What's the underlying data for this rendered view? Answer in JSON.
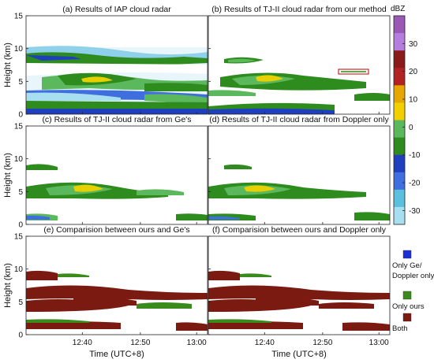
{
  "figure": {
    "xlabel": "Time (UTC+8)",
    "ylabel": "Height (km)",
    "x_tick_labels": [
      "12:40",
      "12:50",
      "13:00"
    ],
    "y_tick_labels": [
      "0",
      "5",
      "10",
      "15"
    ],
    "panels": [
      {
        "id": "a",
        "title": "(a) Results of IAP cloud radar"
      },
      {
        "id": "b",
        "title": "(b) Results of TJ-II cloud radar from our method"
      },
      {
        "id": "c",
        "title": "(c) Results of TJ-II cloud radar from Ge's"
      },
      {
        "id": "d",
        "title": "(d) Results of TJ-II cloud radar from Doppler only"
      },
      {
        "id": "e",
        "title": "(e) Comparision between ours and Ge's"
      },
      {
        "id": "f",
        "title": "(f) Comparision between ours and Doppler only"
      }
    ],
    "colorbar": {
      "unit": "dBZ",
      "tick_labels": [
        "30",
        "20",
        "10",
        "0",
        "-10",
        "-20",
        "-30"
      ],
      "colors": [
        "#9b59b6",
        "#b57ede",
        "#8b1a1a",
        "#b22222",
        "#e6a800",
        "#f2d000",
        "#5cb85c",
        "#2e8b1e",
        "#1f3fbf",
        "#3f6fdf",
        "#5bc0de",
        "#a8dff0"
      ]
    },
    "legend": [
      {
        "label": "Only Ge/\nDoppler only",
        "color": "#1f2fd8"
      },
      {
        "label": "Only ours",
        "color": "#3a8a1c"
      },
      {
        "label": "Both",
        "color": "#7a1a10"
      }
    ]
  },
  "chart_data": [
    {
      "type": "heatmap",
      "title": "(a) Results of IAP cloud radar",
      "xlabel": "",
      "ylabel": "Height (km)",
      "x_ticks": [
        "12:40",
        "12:50",
        "13:00"
      ],
      "ylim": [
        0,
        15
      ],
      "value_range_dbz": [
        -35,
        40
      ]
    },
    {
      "type": "heatmap",
      "title": "(b) Results of TJ-II cloud radar from our method",
      "xlabel": "",
      "ylabel": "",
      "x_ticks": [
        "12:40",
        "12:50",
        "13:00"
      ],
      "ylim": [
        0,
        15
      ],
      "value_range_dbz": [
        -35,
        40
      ]
    },
    {
      "type": "heatmap",
      "title": "(c) Results of TJ-II cloud radar from Ge's",
      "xlabel": "",
      "ylabel": "Height (km)",
      "x_ticks": [
        "12:40",
        "12:50",
        "13:00"
      ],
      "ylim": [
        0,
        15
      ],
      "value_range_dbz": [
        -35,
        40
      ]
    },
    {
      "type": "heatmap",
      "title": "(d) Results of TJ-II cloud radar from Doppler only",
      "xlabel": "",
      "ylabel": "",
      "x_ticks": [
        "12:40",
        "12:50",
        "13:00"
      ],
      "ylim": [
        0,
        15
      ],
      "value_range_dbz": [
        -35,
        40
      ]
    },
    {
      "type": "heatmap",
      "title": "(e) Comparision between ours and Ge's",
      "xlabel": "Time (UTC+8)",
      "ylabel": "Height (km)",
      "x_ticks": [
        "12:40",
        "12:50",
        "13:00"
      ],
      "ylim": [
        0,
        15
      ],
      "categories": [
        "Only Ge/Doppler only",
        "Only ours",
        "Both"
      ]
    },
    {
      "type": "heatmap",
      "title": "(f) Comparision between ours and Doppler only",
      "xlabel": "Time (UTC+8)",
      "ylabel": "",
      "x_ticks": [
        "12:40",
        "12:50",
        "13:00"
      ],
      "ylim": [
        0,
        15
      ],
      "categories": [
        "Only Ge/Doppler only",
        "Only ours",
        "Both"
      ]
    }
  ]
}
